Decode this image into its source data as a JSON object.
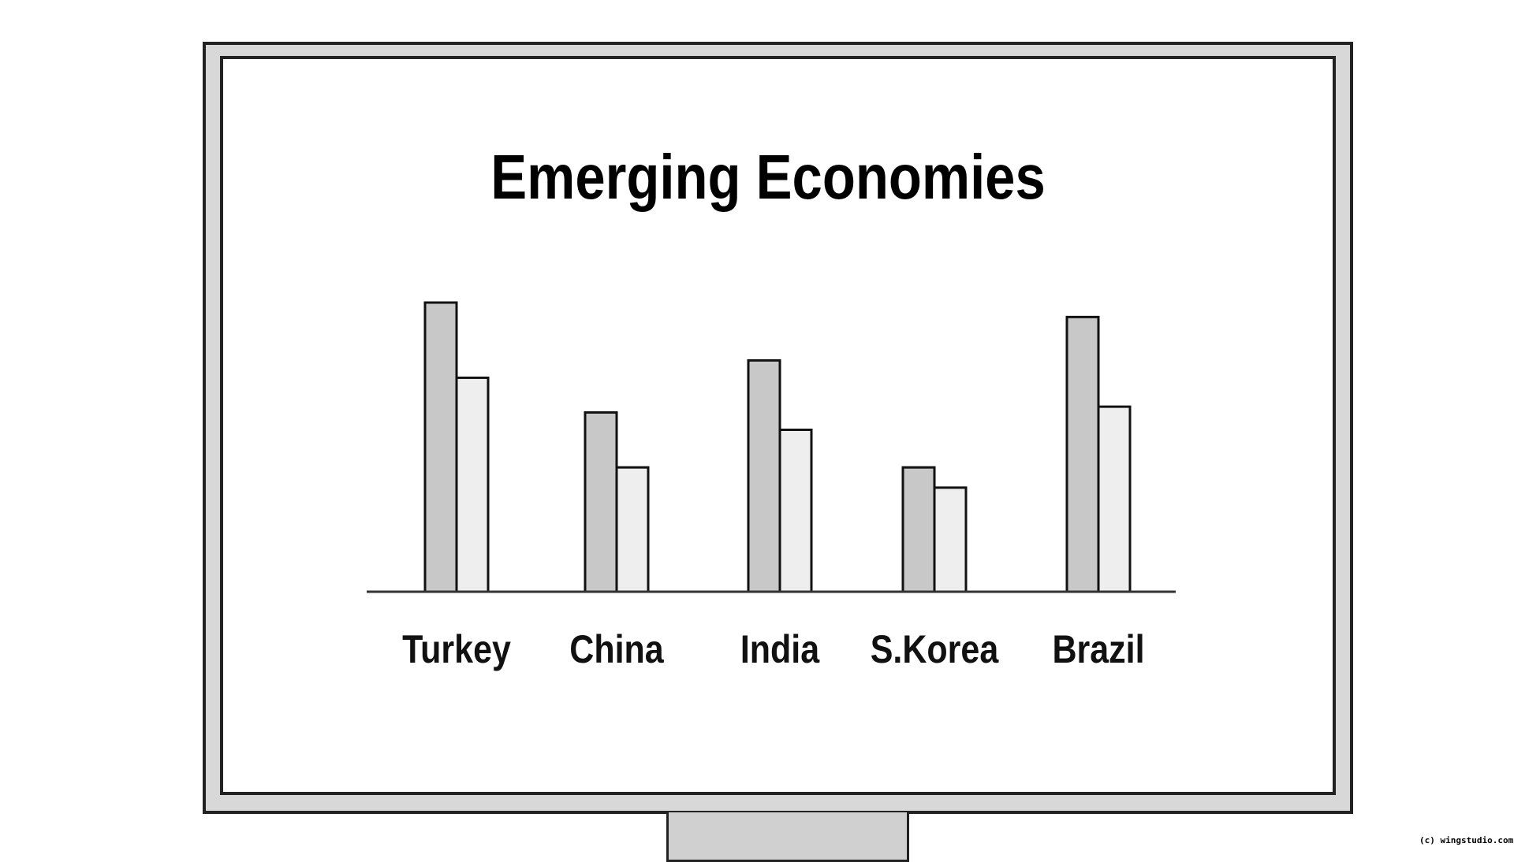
{
  "chart_data": {
    "type": "bar",
    "title": "Emerging Economies",
    "xlabel": "",
    "ylabel": "",
    "categories": [
      "Turkey",
      "China",
      "India",
      "S.Korea",
      "Brazil"
    ],
    "series": [
      {
        "values": [
          100,
          62,
          80,
          43,
          95
        ],
        "color": "#c8c8c8"
      },
      {
        "values": [
          74,
          43,
          56,
          36,
          64
        ],
        "color": "#eeeeee"
      }
    ],
    "ylim": [
      0,
      100
    ],
    "grid": false,
    "axis_ticks": false
  },
  "footer": {
    "copyright": "(c) wingstudio.com"
  }
}
